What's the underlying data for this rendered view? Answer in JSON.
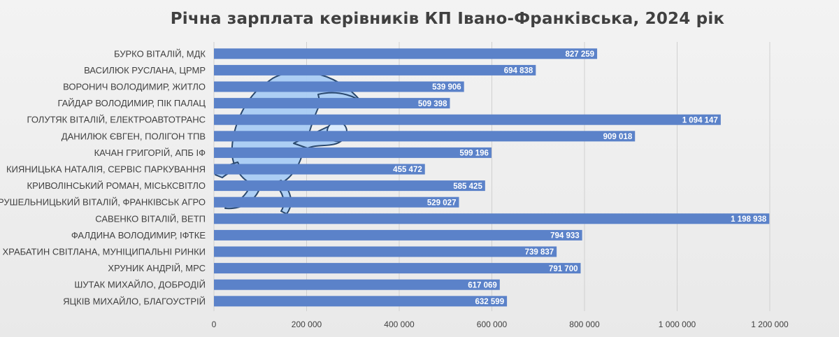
{
  "chart_data": {
    "type": "bar",
    "orientation": "horizontal",
    "title": "Річна зарплата керівників КП Івано-Франківська, 2024 рік",
    "categories": [
      "БУРКО ВІТАЛІЙ, МДК",
      "ВАСИЛЮК РУСЛАНА, ЦРМР",
      "ВОРОНИЧ ВОЛОДИМИР, ЖИТЛО",
      "ГАЙДАР ВОЛОДИМИР, ПІК ПАЛАЦ",
      "ГОЛУТЯК ВІТАЛІЙ, ЕЛЕКТРОАВТОТРАНС",
      "ДАНИЛЮК ЄВГЕН, ПОЛІГОН ТПВ",
      "КАЧАН ГРИГОРІЙ, АПБ ІФ",
      "КИЯНИЦЬКА НАТАЛІЯ, СЕРВІС ПАРКУВАННЯ",
      "КРИВОЛІНСЬКИЙ РОМАН, МІСЬКСВІТЛО",
      "КРУШЕЛЬНИЦЬКИЙ ВІТАЛІЙ, ФРАНКІВСЬК АГРО",
      "САВЕНКО ВІТАЛІЙ, ВЕТП",
      "ФАЛДИНА ВОЛОДИМИР, ІФТКЕ",
      "ХРАБАТИН СВІТЛАНА, МУНІЦИПАЛЬНІ РИНКИ",
      "ХРУНИК АНДРІЙ, МРС",
      "ШУТАК МИХАЙЛО, ДОБРОДІЙ",
      "ЯЦКІВ МИХАЙЛО, БЛАГОУСТРІЙ"
    ],
    "values": [
      827259,
      694838,
      539906,
      509398,
      1094147,
      909018,
      599196,
      455472,
      585425,
      529027,
      1198938,
      794933,
      739837,
      791700,
      617069,
      632599
    ],
    "value_labels": [
      "827 259",
      "694 838",
      "539 906",
      "509 398",
      "1 094 147",
      "909 018",
      "599 196",
      "455 472",
      "585 425",
      "529 027",
      "1 198 938",
      "794 933",
      "739 837",
      "791 700",
      "617 069",
      "632 599"
    ],
    "xlim": [
      0,
      1200000
    ],
    "x_ticks": [
      0,
      200000,
      400000,
      600000,
      800000,
      1000000,
      1200000
    ],
    "x_tick_labels": [
      "0",
      "200 000",
      "400 000",
      "600 000",
      "800 000",
      "1 000 000",
      "1 200 000"
    ],
    "xlabel": "",
    "ylabel": "",
    "grid": "vertical",
    "legend": "none",
    "bar_color": "#5b82c9",
    "watermark_color": "#a9cdf5"
  }
}
